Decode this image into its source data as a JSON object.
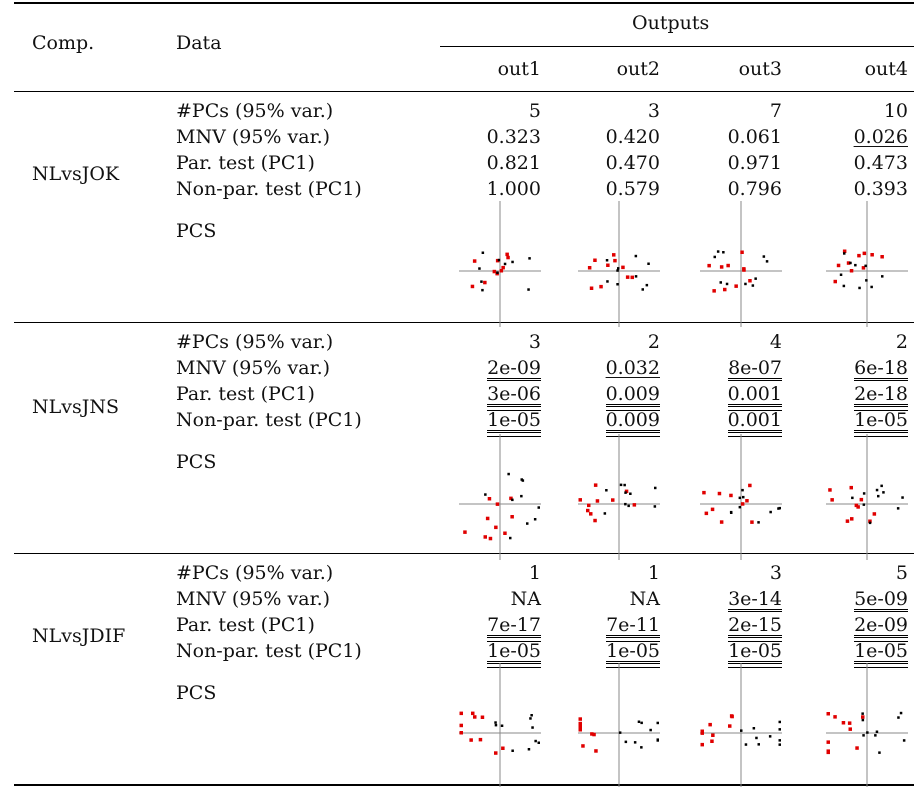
{
  "header": {
    "comp": "Comp.",
    "data": "Data",
    "outputs": "Outputs",
    "out_labels": [
      "out1",
      "out2",
      "out3",
      "out4"
    ]
  },
  "row_labels": [
    "#PCs (95% var.)",
    "MNV (95% var.)",
    "Par. test (PC1)",
    "Non-par. test (PC1)",
    "PCS"
  ],
  "groups": [
    {
      "name": "NLvsJOK",
      "values": [
        [
          {
            "t": "5",
            "u": 0
          },
          {
            "t": "3",
            "u": 0
          },
          {
            "t": "7",
            "u": 0
          },
          {
            "t": "10",
            "u": 0
          }
        ],
        [
          {
            "t": "0.323",
            "u": 0
          },
          {
            "t": "0.420",
            "u": 0
          },
          {
            "t": "0.061",
            "u": 0
          },
          {
            "t": "0.026",
            "u": 1
          }
        ],
        [
          {
            "t": "0.821",
            "u": 0
          },
          {
            "t": "0.470",
            "u": 0
          },
          {
            "t": "0.971",
            "u": 0
          },
          {
            "t": "0.473",
            "u": 0
          }
        ],
        [
          {
            "t": "1.000",
            "u": 0
          },
          {
            "t": "0.579",
            "u": 0
          },
          {
            "t": "0.796",
            "u": 0
          },
          {
            "t": "0.393",
            "u": 0
          }
        ]
      ]
    },
    {
      "name": "NLvsJNS",
      "values": [
        [
          {
            "t": "3",
            "u": 0
          },
          {
            "t": "2",
            "u": 0
          },
          {
            "t": "4",
            "u": 0
          },
          {
            "t": "2",
            "u": 0
          }
        ],
        [
          {
            "t": "2e-09",
            "u": 2
          },
          {
            "t": "0.032",
            "u": 1
          },
          {
            "t": "8e-07",
            "u": 2
          },
          {
            "t": "6e-18",
            "u": 2
          }
        ],
        [
          {
            "t": "3e-06",
            "u": 3
          },
          {
            "t": "0.009",
            "u": 3
          },
          {
            "t": "0.001",
            "u": 3
          },
          {
            "t": "2e-18",
            "u": 3
          }
        ],
        [
          {
            "t": "1e-05",
            "u": 3
          },
          {
            "t": "0.009",
            "u": 3
          },
          {
            "t": "0.001",
            "u": 3
          },
          {
            "t": "1e-05",
            "u": 3
          }
        ]
      ]
    },
    {
      "name": "NLvsJDIF",
      "values": [
        [
          {
            "t": "1",
            "u": 0
          },
          {
            "t": "1",
            "u": 0
          },
          {
            "t": "3",
            "u": 0
          },
          {
            "t": "5",
            "u": 0
          }
        ],
        [
          {
            "t": "NA",
            "u": 0
          },
          {
            "t": "NA",
            "u": 0
          },
          {
            "t": "3e-14",
            "u": 2
          },
          {
            "t": "5e-09",
            "u": 2
          }
        ],
        [
          {
            "t": "7e-17",
            "u": 3
          },
          {
            "t": "7e-11",
            "u": 3
          },
          {
            "t": "2e-15",
            "u": 3
          },
          {
            "t": "2e-09",
            "u": 3
          }
        ],
        [
          {
            "t": "1e-05",
            "u": 3
          },
          {
            "t": "1e-05",
            "u": 3
          },
          {
            "t": "1e-05",
            "u": 3
          },
          {
            "t": "1e-05",
            "u": 3
          }
        ]
      ]
    }
  ],
  "colors": {
    "group_a": "#e00000",
    "group_b": "#000000",
    "axis": "#888888"
  }
}
